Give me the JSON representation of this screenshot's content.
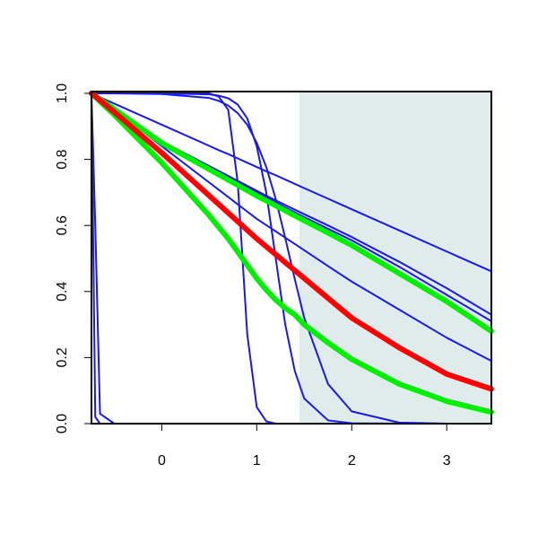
{
  "chart_data": {
    "type": "line",
    "x": [
      -0.74,
      -0.7,
      -0.65,
      -0.5,
      0,
      0.5,
      0.6,
      0.7,
      0.8,
      0.9,
      1,
      1.1,
      1.2,
      1.3,
      1.4,
      1.5,
      1.75,
      2,
      2.5,
      3,
      3.47
    ],
    "series": [
      {
        "color": "#1a1ae0",
        "width": 2,
        "values": [
          1,
          0.02,
          0,
          0,
          0,
          0,
          0,
          0,
          0,
          0,
          0,
          0,
          0,
          0,
          0,
          0,
          0,
          0,
          0,
          0,
          0
        ]
      },
      {
        "color": "#1a1ae0",
        "width": 2,
        "values": [
          1,
          0.6,
          0.03,
          0,
          0,
          0,
          0,
          0,
          0,
          0,
          0,
          0,
          0,
          0,
          0,
          0,
          0,
          0,
          0,
          0,
          0
        ]
      },
      {
        "color": "#1a1ae0",
        "width": 2,
        "values": [
          1,
          1,
          1,
          1,
          1,
          1,
          0.99,
          0.95,
          0.73,
          0.27,
          0.05,
          0.007,
          0,
          0,
          0,
          0,
          0,
          0,
          0,
          0,
          0
        ]
      },
      {
        "color": "#1a1ae0",
        "width": 2,
        "values": [
          1,
          1,
          1,
          1,
          1,
          0.997,
          0.993,
          0.985,
          0.966,
          0.924,
          0.84,
          0.7,
          0.5,
          0.3,
          0.16,
          0.076,
          0.01,
          0.001,
          0,
          0,
          0
        ]
      },
      {
        "color": "#1a1ae0",
        "width": 2,
        "values": [
          1,
          1,
          1,
          1,
          0.998,
          0.986,
          0.977,
          0.963,
          0.94,
          0.905,
          0.85,
          0.777,
          0.68,
          0.562,
          0.438,
          0.32,
          0.12,
          0.037,
          0.003,
          0,
          0
        ]
      },
      {
        "color": "#1a1ae0",
        "width": 2,
        "values": [
          1,
          0.995,
          0.988,
          0.969,
          0.905,
          0.841,
          0.828,
          0.816,
          0.803,
          0.79,
          0.777,
          0.764,
          0.752,
          0.739,
          0.726,
          0.713,
          0.681,
          0.649,
          0.585,
          0.521,
          0.461
        ]
      },
      {
        "color": "#1a1ae0",
        "width": 2,
        "values": [
          1,
          0.993,
          0.984,
          0.955,
          0.855,
          0.78,
          0.765,
          0.75,
          0.735,
          0.72,
          0.705,
          0.69,
          0.676,
          0.662,
          0.648,
          0.634,
          0.6,
          0.565,
          0.49,
          0.41,
          0.33
        ]
      },
      {
        "color": "#1a1ae0",
        "width": 2,
        "values": [
          1,
          0.993,
          0.983,
          0.954,
          0.853,
          0.776,
          0.76,
          0.745,
          0.73,
          0.715,
          0.7,
          0.685,
          0.67,
          0.655,
          0.64,
          0.625,
          0.59,
          0.555,
          0.475,
          0.39,
          0.31
        ]
      },
      {
        "color": "#1a1ae0",
        "width": 2,
        "values": [
          1,
          0.992,
          0.982,
          0.952,
          0.84,
          0.73,
          0.708,
          0.686,
          0.664,
          0.642,
          0.62,
          0.601,
          0.582,
          0.563,
          0.544,
          0.525,
          0.477,
          0.43,
          0.345,
          0.26,
          0.19
        ]
      },
      {
        "color": "#00ee00",
        "width": 6,
        "values": [
          1,
          0.992,
          0.982,
          0.952,
          0.85,
          0.77,
          0.754,
          0.738,
          0.722,
          0.706,
          0.69,
          0.675,
          0.66,
          0.645,
          0.63,
          0.615,
          0.578,
          0.54,
          0.455,
          0.37,
          0.28
        ]
      },
      {
        "color": "#00ee00",
        "width": 6,
        "values": [
          1,
          0.99,
          0.975,
          0.935,
          0.79,
          0.63,
          0.595,
          0.56,
          0.52,
          0.48,
          0.44,
          0.405,
          0.375,
          0.35,
          0.33,
          0.3,
          0.245,
          0.195,
          0.12,
          0.068,
          0.035
        ]
      },
      {
        "color": "#ff0000",
        "width": 6,
        "values": [
          1,
          0.991,
          0.979,
          0.943,
          0.82,
          0.69,
          0.664,
          0.638,
          0.612,
          0.586,
          0.56,
          0.536,
          0.512,
          0.488,
          0.464,
          0.44,
          0.38,
          0.32,
          0.23,
          0.15,
          0.105
        ]
      }
    ],
    "xlim": [
      -0.74,
      3.47
    ],
    "ylim": [
      0,
      1
    ],
    "xticks": [
      0,
      1,
      2,
      3
    ],
    "yticks": [
      {
        "value": 0,
        "label": "0.0"
      },
      {
        "value": 0.2,
        "label": "0.2"
      },
      {
        "value": 0.4,
        "label": "0.4"
      },
      {
        "value": 0.6,
        "label": "0.6"
      },
      {
        "value": 0.8,
        "label": "0.8"
      },
      {
        "value": 1,
        "label": "1.0"
      }
    ],
    "shaded_region": {
      "x": [
        1.45,
        3.47
      ],
      "color": "#e0ecec"
    }
  }
}
